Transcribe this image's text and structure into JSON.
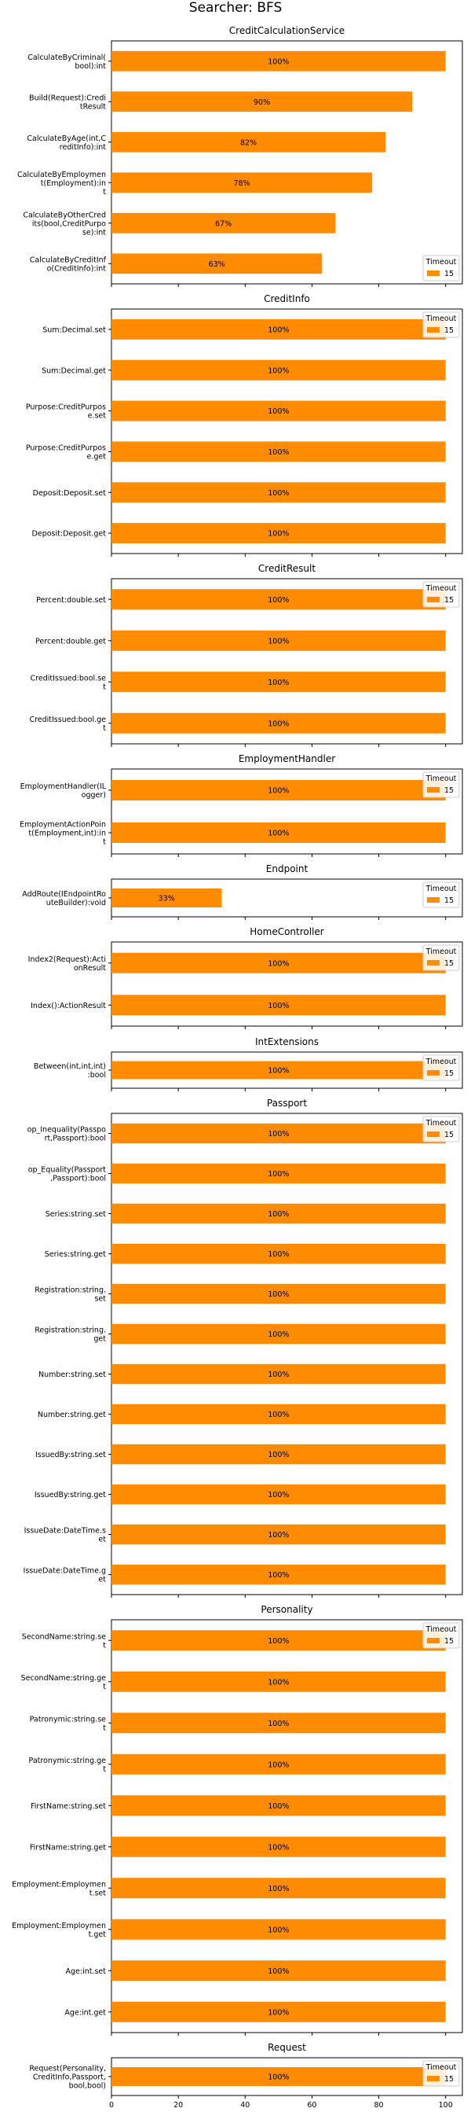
{
  "title": "Searcher: BFS",
  "colors": {
    "bar": "#ff8c00",
    "axis": "#000000",
    "background": "#ffffff"
  },
  "chart_data": [
    {
      "type": "bar",
      "orientation": "horizontal",
      "title": "CreditCalculationService",
      "categories": [
        [
          "CalculateByCriminal(",
          "bool):int"
        ],
        [
          "Build(Request):Credi",
          "tResult"
        ],
        [
          "CalculateByAge(int,C",
          "reditInfo):int"
        ],
        [
          "CalculateByEmploymen",
          "t(Employment):in",
          "t"
        ],
        [
          "CalculateByOtherCred",
          "its(bool,CreditPurpo",
          "se):int"
        ],
        [
          "CalculateByCreditInf",
          "o(CreditInfo):int"
        ]
      ],
      "values": [
        100,
        90,
        82,
        78,
        67,
        63
      ],
      "data_labels": [
        "100%",
        "90%",
        "82%",
        "78%",
        "67%",
        "63%"
      ],
      "series": [
        {
          "name": "15"
        }
      ],
      "legend_title": "Timeout",
      "legend_position": "bottom-right",
      "xlim": [
        0,
        105
      ]
    },
    {
      "type": "bar",
      "orientation": "horizontal",
      "title": "CreditInfo",
      "categories": [
        [
          "Sum:Decimal.set"
        ],
        [
          "Sum:Decimal.get"
        ],
        [
          "Purpose:CreditPurpos",
          "e.set"
        ],
        [
          "Purpose:CreditPurpos",
          "e.get"
        ],
        [
          "Deposit:Deposit.set"
        ],
        [
          "Deposit:Deposit.get"
        ]
      ],
      "values": [
        100,
        100,
        100,
        100,
        100,
        100
      ],
      "data_labels": [
        "100%",
        "100%",
        "100%",
        "100%",
        "100%",
        "100%"
      ],
      "series": [
        {
          "name": "15"
        }
      ],
      "legend_title": "Timeout",
      "legend_position": "top-right",
      "xlim": [
        0,
        105
      ]
    },
    {
      "type": "bar",
      "orientation": "horizontal",
      "title": "CreditResult",
      "categories": [
        [
          "Percent:double.set"
        ],
        [
          "Percent:double.get"
        ],
        [
          "CreditIssued:bool.se",
          "t"
        ],
        [
          "CreditIssued:bool.ge",
          "t"
        ]
      ],
      "values": [
        100,
        100,
        100,
        100
      ],
      "data_labels": [
        "100%",
        "100%",
        "100%",
        "100%"
      ],
      "series": [
        {
          "name": "15"
        }
      ],
      "legend_title": "Timeout",
      "legend_position": "top-right",
      "xlim": [
        0,
        105
      ]
    },
    {
      "type": "bar",
      "orientation": "horizontal",
      "title": "EmploymentHandler",
      "categories": [
        [
          "EmploymentHandler(IL",
          "ogger)"
        ],
        [
          "EmploymentActionPoin",
          "t(Employment,int):in",
          "t"
        ]
      ],
      "values": [
        100,
        100
      ],
      "data_labels": [
        "100%",
        "100%"
      ],
      "series": [
        {
          "name": "15"
        }
      ],
      "legend_title": "Timeout",
      "legend_position": "top-right",
      "xlim": [
        0,
        105
      ]
    },
    {
      "type": "bar",
      "orientation": "horizontal",
      "title": "Endpoint",
      "categories": [
        [
          "AddRoute(IEndpointRo",
          "uteBuilder):void"
        ]
      ],
      "values": [
        33
      ],
      "data_labels": [
        "33%"
      ],
      "series": [
        {
          "name": "15"
        }
      ],
      "legend_title": "Timeout",
      "legend_position": "top-right",
      "xlim": [
        0,
        105
      ]
    },
    {
      "type": "bar",
      "orientation": "horizontal",
      "title": "HomeController",
      "categories": [
        [
          "Index2(Request):Acti",
          "onResult"
        ],
        [
          "Index():ActionResult"
        ]
      ],
      "values": [
        100,
        100
      ],
      "data_labels": [
        "100%",
        "100%"
      ],
      "series": [
        {
          "name": "15"
        }
      ],
      "legend_title": "Timeout",
      "legend_position": "top-right",
      "xlim": [
        0,
        105
      ]
    },
    {
      "type": "bar",
      "orientation": "horizontal",
      "title": "IntExtensions",
      "categories": [
        [
          "Between(int,int,int)",
          ":bool"
        ]
      ],
      "values": [
        100
      ],
      "data_labels": [
        "100%"
      ],
      "series": [
        {
          "name": "15"
        }
      ],
      "legend_title": "Timeout",
      "legend_position": "top-right",
      "xlim": [
        0,
        105
      ]
    },
    {
      "type": "bar",
      "orientation": "horizontal",
      "title": "Passport",
      "categories": [
        [
          "op_Inequality(Passpo",
          "rt,Passport):bool"
        ],
        [
          "op_Equality(Passport",
          ",Passport):bool"
        ],
        [
          "Series:string.set"
        ],
        [
          "Series:string.get"
        ],
        [
          "Registration:string.",
          "set"
        ],
        [
          "Registration:string.",
          "get"
        ],
        [
          "Number:string.set"
        ],
        [
          "Number:string.get"
        ],
        [
          "IssuedBy:string.set"
        ],
        [
          "IssuedBy:string.get"
        ],
        [
          "IssueDate:DateTime.s",
          "et"
        ],
        [
          "IssueDate:DateTime.g",
          "et"
        ]
      ],
      "values": [
        100,
        100,
        100,
        100,
        100,
        100,
        100,
        100,
        100,
        100,
        100,
        100
      ],
      "data_labels": [
        "100%",
        "100%",
        "100%",
        "100%",
        "100%",
        "100%",
        "100%",
        "100%",
        "100%",
        "100%",
        "100%",
        "100%"
      ],
      "series": [
        {
          "name": "15"
        }
      ],
      "legend_title": "Timeout",
      "legend_position": "top-right",
      "xlim": [
        0,
        105
      ]
    },
    {
      "type": "bar",
      "orientation": "horizontal",
      "title": "Personality",
      "categories": [
        [
          "SecondName:string.se",
          "t"
        ],
        [
          "SecondName:string.ge",
          "t"
        ],
        [
          "Patronymic:string.se",
          "t"
        ],
        [
          "Patronymic:string.ge",
          "t"
        ],
        [
          "FirstName:string.set"
        ],
        [
          "FirstName:string.get"
        ],
        [
          "Employment:Employmen",
          "t.set"
        ],
        [
          "Employment:Employmen",
          "t.get"
        ],
        [
          "Age:int.set"
        ],
        [
          "Age:int.get"
        ]
      ],
      "values": [
        100,
        100,
        100,
        100,
        100,
        100,
        100,
        100,
        100,
        100
      ],
      "data_labels": [
        "100%",
        "100%",
        "100%",
        "100%",
        "100%",
        "100%",
        "100%",
        "100%",
        "100%",
        "100%"
      ],
      "series": [
        {
          "name": "15"
        }
      ],
      "legend_title": "Timeout",
      "legend_position": "top-right",
      "xlim": [
        0,
        105
      ]
    },
    {
      "type": "bar",
      "orientation": "horizontal",
      "title": "Request",
      "categories": [
        [
          "Request(Personality,",
          "CreditInfo,Passport,",
          "bool,bool)"
        ]
      ],
      "values": [
        100
      ],
      "data_labels": [
        "100%"
      ],
      "series": [
        {
          "name": "15"
        }
      ],
      "legend_title": "Timeout",
      "legend_position": "top-right",
      "xlim": [
        0,
        105
      ],
      "xticks": [
        0,
        20,
        40,
        60,
        80,
        100
      ]
    }
  ]
}
